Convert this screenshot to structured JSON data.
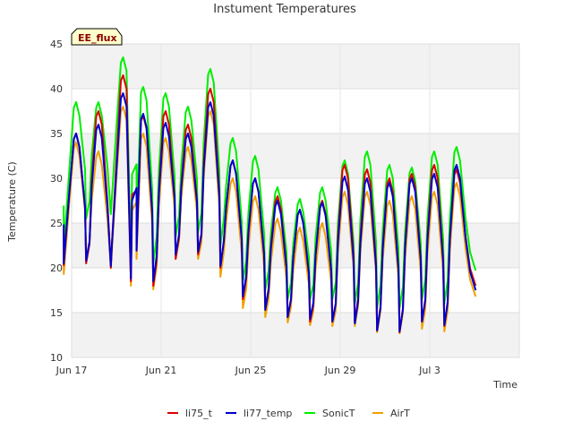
{
  "chart_data": {
    "type": "line",
    "title": "Instument Temperatures",
    "tag": "EE_flux",
    "xlabel": "Time",
    "ylabel": "Temperature (C)",
    "xlim": [
      17,
      37
    ],
    "ylim": [
      10,
      45
    ],
    "y_ticks": [
      10,
      15,
      20,
      25,
      30,
      35,
      40,
      45
    ],
    "x_ticks": [
      {
        "label": "Jun 17",
        "day": 17
      },
      {
        "label": "Jun 21",
        "day": 21
      },
      {
        "label": "Jun 25",
        "day": 25
      },
      {
        "label": "Jun 29",
        "day": 29
      },
      {
        "label": "Jul 3",
        "day": 33
      }
    ],
    "grid": true,
    "legend_position": "bottom",
    "x_units": "day of month (June; 31 = Jul 1)",
    "series": [
      {
        "name": "li75_t",
        "color": "#dd0000",
        "daily": [
          [
            17.2,
            20.3,
            35.0
          ],
          [
            18.2,
            20.5,
            37.5
          ],
          [
            19.3,
            20.0,
            41.5
          ],
          [
            20.2,
            18.5,
            37.0
          ],
          [
            21.2,
            18.0,
            37.5
          ],
          [
            22.2,
            21.0,
            36.0
          ],
          [
            23.2,
            21.5,
            40.0
          ],
          [
            24.2,
            20.0,
            32.0
          ],
          [
            25.2,
            16.5,
            30.0
          ],
          [
            26.2,
            15.5,
            28.0
          ],
          [
            27.2,
            14.5,
            26.5
          ],
          [
            28.2,
            14.0,
            27.5
          ],
          [
            29.2,
            14.0,
            31.5
          ],
          [
            30.2,
            14.0,
            31.0
          ],
          [
            31.2,
            13.0,
            30.0
          ],
          [
            32.2,
            12.8,
            30.5
          ],
          [
            33.2,
            14.0,
            31.5
          ],
          [
            34.2,
            13.5,
            31.0
          ]
        ],
        "end": [
          35.05,
          18.0
        ]
      },
      {
        "name": "li77_temp",
        "color": "#0000cc",
        "daily": [
          [
            17.2,
            20.5,
            35.0
          ],
          [
            18.2,
            20.8,
            36.0
          ],
          [
            19.3,
            20.2,
            39.5
          ],
          [
            20.2,
            18.8,
            37.2
          ],
          [
            21.2,
            18.5,
            36.2
          ],
          [
            22.2,
            21.5,
            35.0
          ],
          [
            23.2,
            21.8,
            38.5
          ],
          [
            24.2,
            20.2,
            32.0
          ],
          [
            25.2,
            16.8,
            30.0
          ],
          [
            26.2,
            15.3,
            27.5
          ],
          [
            27.2,
            14.5,
            26.5
          ],
          [
            28.2,
            14.3,
            27.3
          ],
          [
            29.2,
            14.0,
            30.2
          ],
          [
            30.2,
            13.8,
            30.0
          ],
          [
            31.2,
            13.0,
            29.5
          ],
          [
            32.2,
            12.9,
            30.0
          ],
          [
            33.2,
            14.0,
            30.5
          ],
          [
            34.2,
            13.6,
            31.5
          ]
        ],
        "end": [
          35.05,
          17.5
        ]
      },
      {
        "name": "SonicT",
        "color": "#00ee00",
        "daily": [
          [
            17.2,
            22.0,
            38.5
          ],
          [
            18.2,
            25.5,
            38.5
          ],
          [
            19.3,
            26.0,
            43.5
          ],
          [
            20.2,
            21.0,
            40.2
          ],
          [
            21.2,
            20.5,
            39.5
          ],
          [
            22.2,
            23.5,
            38.0
          ],
          [
            23.2,
            24.0,
            42.2
          ],
          [
            24.2,
            22.5,
            34.5
          ],
          [
            25.2,
            18.5,
            32.5
          ],
          [
            26.2,
            17.5,
            29.0
          ],
          [
            27.2,
            16.5,
            27.7
          ],
          [
            28.2,
            16.5,
            29.0
          ],
          [
            29.2,
            16.5,
            32.0
          ],
          [
            30.2,
            16.0,
            33.0
          ],
          [
            31.2,
            15.5,
            31.5
          ],
          [
            32.2,
            15.5,
            31.2
          ],
          [
            33.2,
            16.5,
            33.0
          ],
          [
            34.2,
            16.0,
            33.5
          ]
        ],
        "end": [
          35.05,
          19.7
        ]
      },
      {
        "name": "AirT",
        "color": "#f0a000",
        "daily": [
          [
            17.2,
            19.3,
            34.0
          ],
          [
            18.2,
            21.0,
            33.0
          ],
          [
            19.3,
            20.0,
            38.0
          ],
          [
            20.2,
            18.0,
            35.0
          ],
          [
            21.2,
            17.6,
            34.5
          ],
          [
            22.2,
            21.0,
            33.5
          ],
          [
            23.2,
            21.0,
            37.5
          ],
          [
            24.2,
            19.0,
            30.0
          ],
          [
            25.2,
            15.5,
            28.0
          ],
          [
            26.2,
            14.5,
            25.5
          ],
          [
            27.2,
            13.9,
            24.5
          ],
          [
            28.2,
            13.6,
            25.0
          ],
          [
            29.2,
            13.5,
            28.5
          ],
          [
            30.2,
            13.5,
            28.5
          ],
          [
            31.2,
            12.8,
            27.5
          ],
          [
            32.2,
            12.7,
            28.0
          ],
          [
            33.2,
            13.2,
            28.5
          ],
          [
            34.2,
            12.9,
            29.5
          ]
        ],
        "end": [
          35.05,
          16.8
        ]
      }
    ]
  }
}
